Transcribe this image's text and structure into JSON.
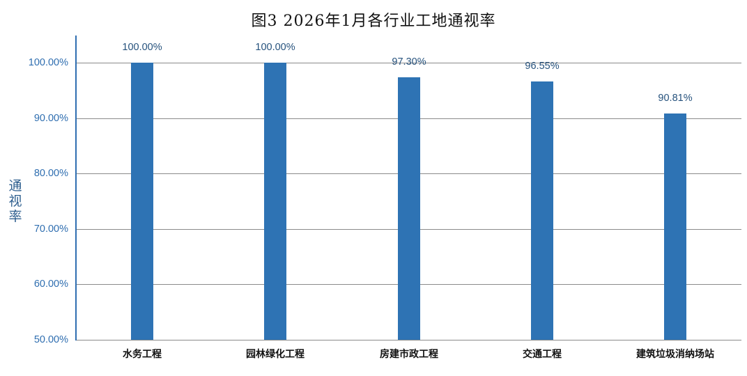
{
  "chart_data": {
    "type": "bar",
    "title": "图3 2026年1月各行业工地通视率",
    "xlabel": "",
    "ylabel": "通视率",
    "categories": [
      "水务工程",
      "园林绿化工程",
      "房建市政工程",
      "交通工程",
      "建筑垃圾消纳场站"
    ],
    "values": [
      100.0,
      100.0,
      97.3,
      96.55,
      90.81
    ],
    "data_labels": [
      "100.00%",
      "100.00%",
      "97.30%",
      "96.55%",
      "90.81%"
    ],
    "ylim": [
      50,
      105
    ],
    "yticks": [
      50,
      60,
      70,
      80,
      90,
      100
    ],
    "ytick_labels": [
      "50.00%",
      "60.00%",
      "70.00%",
      "80.00%",
      "90.00%",
      "100.00%"
    ],
    "grid": true,
    "legend": null,
    "bar_color": "#2E73B4"
  },
  "title": "图3 2026年1月各行业工地通视率",
  "ylabel_chars": [
    "通",
    "视",
    "率"
  ]
}
